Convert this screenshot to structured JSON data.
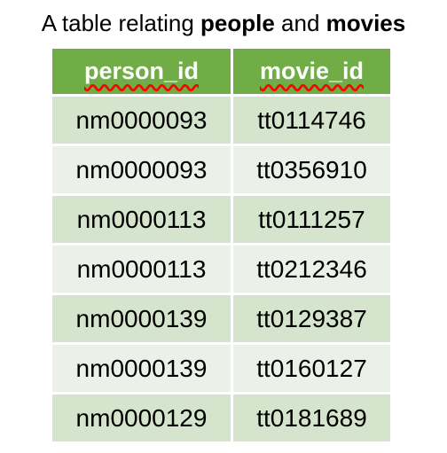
{
  "title": {
    "prefix": "A table relating ",
    "word1": "people",
    "middle": " and ",
    "word2": "movies"
  },
  "table": {
    "headers": [
      "person_id",
      "movie_id"
    ],
    "rows": [
      [
        "nm0000093",
        "tt0114746"
      ],
      [
        "nm0000093",
        "tt0356910"
      ],
      [
        "nm0000113",
        "tt0111257"
      ],
      [
        "nm0000113",
        "tt0212346"
      ],
      [
        "nm0000139",
        "tt0129387"
      ],
      [
        "nm0000139",
        "tt0160127"
      ],
      [
        "nm0000129",
        "tt0181689"
      ]
    ]
  },
  "colors": {
    "header_bg": "#70ad47",
    "header_text": "#ffffff",
    "row_odd": "#d5e4cc",
    "row_even": "#ebf1e8"
  }
}
